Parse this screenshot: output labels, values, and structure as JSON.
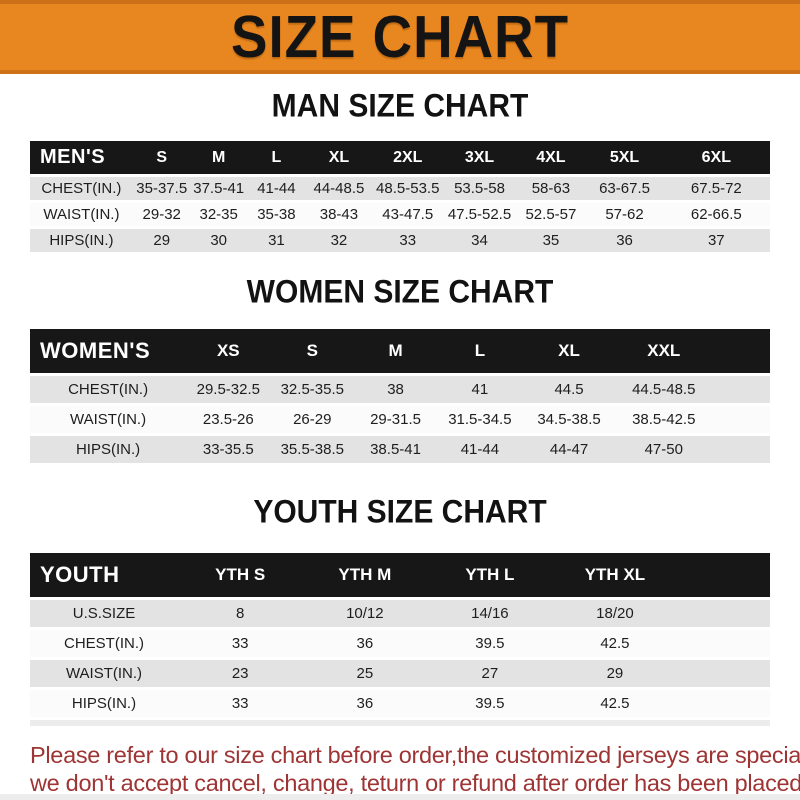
{
  "banner": {
    "title": "SIZE CHART",
    "bg_color": "#E8861F",
    "edge_color": "#CC7117",
    "text_color": "#141414"
  },
  "tables": [
    {
      "title": "MAN SIZE CHART",
      "header": [
        "MEN'S",
        "S",
        "M",
        "L",
        "XL",
        "2XL",
        "3XL",
        "4XL",
        "5XL",
        "6XL"
      ],
      "rows": [
        [
          "CHEST(IN.)",
          "35-37.5",
          "37.5-41",
          "41-44",
          "44-48.5",
          "48.5-53.5",
          "53.5-58",
          "58-63",
          "63-67.5",
          "67.5-72"
        ],
        [
          "WAIST(IN.)",
          "29-32",
          "32-35",
          "35-38",
          "38-43",
          "43-47.5",
          "47.5-52.5",
          "52.5-57",
          "57-62",
          "62-66.5"
        ],
        [
          "HIPS(IN.)",
          "29",
          "30",
          "31",
          "32",
          "33",
          "34",
          "35",
          "36",
          "37"
        ]
      ]
    },
    {
      "title": "WOMEN SIZE CHART",
      "header": [
        "WOMEN'S",
        "XS",
        "S",
        "M",
        "L",
        "XL",
        "XXL"
      ],
      "rows": [
        [
          "CHEST(IN.)",
          "29.5-32.5",
          "32.5-35.5",
          "38",
          "41",
          "44.5",
          "44.5-48.5"
        ],
        [
          "WAIST(IN.)",
          "23.5-26",
          "26-29",
          "29-31.5",
          "31.5-34.5",
          "34.5-38.5",
          "38.5-42.5"
        ],
        [
          "HIPS(IN.)",
          "33-35.5",
          "35.5-38.5",
          "38.5-41",
          "41-44",
          "44-47",
          "47-50"
        ]
      ]
    },
    {
      "title": "YOUTH SIZE CHART",
      "header": [
        "YOUTH",
        "YTH S",
        "YTH M",
        "YTH L",
        "YTH XL"
      ],
      "rows": [
        [
          "U.S.SIZE",
          "8",
          "10/12",
          "14/16",
          "18/20"
        ],
        [
          "CHEST(IN.)",
          "33",
          "36",
          "39.5",
          "42.5"
        ],
        [
          "WAIST(IN.)",
          "23",
          "25",
          "27",
          "29"
        ],
        [
          "HIPS(IN.)",
          "33",
          "36",
          "39.5",
          "42.5"
        ]
      ]
    }
  ],
  "footer": {
    "line1": "Please refer to our size chart before order,the customized jerseys are special products,",
    "line2": "we don't accept cancel, change, teturn or refund after order has been placed!",
    "text_color": "#9E3434"
  }
}
